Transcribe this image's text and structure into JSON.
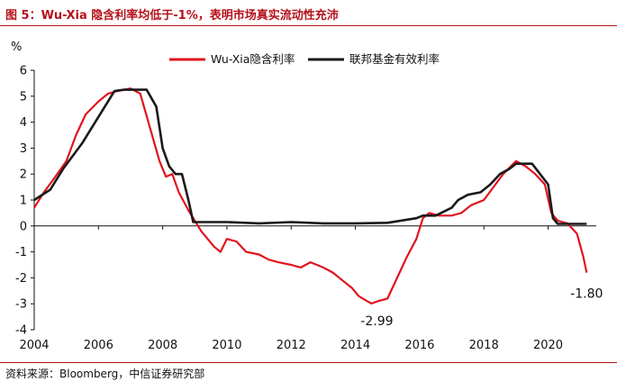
{
  "header": {
    "title": "图 5：Wu-Xia 隐含利率均低于-1%，表明市场真实流动性充沛"
  },
  "footer": {
    "source": "资料来源：Bloomberg，中信证券研究部"
  },
  "chart_data": {
    "type": "line",
    "title": "图 5：Wu-Xia 隐含利率均低于-1%，表明市场真实流动性充沛",
    "ylabel": "%",
    "xlabel": "",
    "xlim": [
      2004,
      2021.5
    ],
    "ylim": [
      -4,
      6
    ],
    "x_ticks": [
      "2004",
      "2006",
      "2008",
      "2010",
      "2012",
      "2014",
      "2016",
      "2018",
      "2020"
    ],
    "y_ticks": [
      "6",
      "5",
      "4",
      "3",
      "2",
      "1",
      "0",
      "-1",
      "-2",
      "-3",
      "-4"
    ],
    "legend_position": "top-right",
    "grid": false,
    "series": [
      {
        "name": "Wu-Xia隐含利率",
        "color": "#e0141e",
        "x": [
          2004.0,
          2004.3,
          2004.6,
          2005.0,
          2005.3,
          2005.6,
          2006.0,
          2006.3,
          2006.6,
          2007.0,
          2007.3,
          2007.6,
          2007.9,
          2008.1,
          2008.3,
          2008.5,
          2008.8,
          2009.0,
          2009.2,
          2009.4,
          2009.6,
          2009.8,
          2010.0,
          2010.3,
          2010.6,
          2011.0,
          2011.3,
          2011.6,
          2012.0,
          2012.3,
          2012.6,
          2013.0,
          2013.3,
          2013.6,
          2013.9,
          2014.1,
          2014.3,
          2014.5,
          2014.7,
          2015.0,
          2015.3,
          2015.6,
          2015.9,
          2016.1,
          2016.3,
          2016.6,
          2017.0,
          2017.3,
          2017.6,
          2018.0,
          2018.3,
          2018.6,
          2019.0,
          2019.3,
          2019.6,
          2019.9,
          2020.1,
          2020.3,
          2020.6,
          2020.9,
          2021.1,
          2021.2
        ],
        "y": [
          0.7,
          1.3,
          1.8,
          2.5,
          3.5,
          4.3,
          4.8,
          5.1,
          5.2,
          5.3,
          5.1,
          3.8,
          2.5,
          1.9,
          2.0,
          1.3,
          0.6,
          0.2,
          -0.2,
          -0.5,
          -0.8,
          -1.0,
          -0.5,
          -0.6,
          -1.0,
          -1.1,
          -1.3,
          -1.4,
          -1.5,
          -1.6,
          -1.4,
          -1.6,
          -1.8,
          -2.1,
          -2.4,
          -2.7,
          -2.85,
          -2.99,
          -2.9,
          -2.8,
          -2.0,
          -1.2,
          -0.5,
          0.3,
          0.5,
          0.4,
          0.4,
          0.5,
          0.8,
          1.0,
          1.5,
          2.0,
          2.5,
          2.3,
          2.0,
          1.6,
          0.5,
          0.2,
          0.1,
          -0.3,
          -1.2,
          -1.8
        ]
      },
      {
        "name": "联邦基金有效利率",
        "color": "#1a1a1a",
        "x": [
          2004.0,
          2004.5,
          2004.9,
          2005.2,
          2005.5,
          2005.9,
          2006.2,
          2006.5,
          2006.8,
          2007.0,
          2007.5,
          2007.8,
          2008.0,
          2008.2,
          2008.4,
          2008.6,
          2008.8,
          2008.95,
          2009.2,
          2010.0,
          2011.0,
          2012.0,
          2013.0,
          2014.0,
          2015.0,
          2015.9,
          2016.1,
          2016.5,
          2017.0,
          2017.2,
          2017.5,
          2017.9,
          2018.2,
          2018.5,
          2018.8,
          2019.0,
          2019.5,
          2019.75,
          2020.0,
          2020.15,
          2020.3,
          2021.0,
          2021.2
        ],
        "y": [
          1.0,
          1.4,
          2.2,
          2.7,
          3.2,
          4.0,
          4.6,
          5.2,
          5.25,
          5.25,
          5.25,
          4.6,
          3.0,
          2.3,
          2.0,
          2.0,
          1.0,
          0.15,
          0.15,
          0.15,
          0.1,
          0.15,
          0.1,
          0.1,
          0.12,
          0.3,
          0.4,
          0.4,
          0.7,
          1.0,
          1.2,
          1.3,
          1.6,
          2.0,
          2.2,
          2.4,
          2.4,
          2.0,
          1.6,
          0.3,
          0.08,
          0.08,
          0.08
        ]
      }
    ],
    "annotations": [
      {
        "text": "-2.99",
        "x": 2014.5,
        "y": -2.99
      },
      {
        "text": "-1.80",
        "x": 2021.2,
        "y": -1.8
      }
    ]
  }
}
